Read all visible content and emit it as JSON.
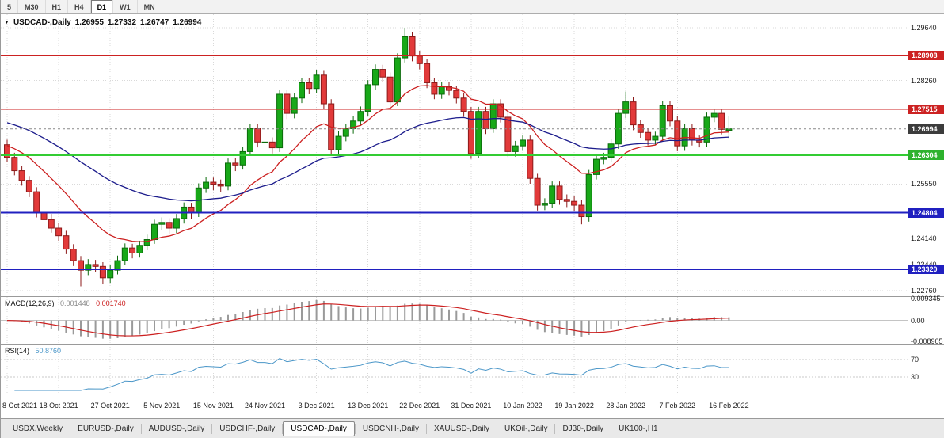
{
  "toolbar": {
    "timeframes": [
      {
        "label": "5",
        "active": false
      },
      {
        "label": "M30",
        "active": false
      },
      {
        "label": "H1",
        "active": false
      },
      {
        "label": "H4",
        "active": false
      },
      {
        "label": "D1",
        "active": true
      },
      {
        "label": "W1",
        "active": false
      },
      {
        "label": "MN",
        "active": false
      }
    ]
  },
  "chart_header": {
    "dropdown_icon": "▼",
    "symbol": "USDCAD-,Daily",
    "open": "1.26955",
    "high": "1.27332",
    "low": "1.26747",
    "close": "1.26994"
  },
  "price_axis": {
    "labels": [
      {
        "text": "1.29640",
        "price": 1.2964
      },
      {
        "text": "1.28260",
        "price": 1.2826
      },
      {
        "text": "1.25550",
        "price": 1.2555
      },
      {
        "text": "1.24140",
        "price": 1.2414
      },
      {
        "text": "1.23440",
        "price": 1.2344
      },
      {
        "text": "1.22760",
        "price": 1.2276
      }
    ],
    "badges": [
      {
        "text": "1.28908",
        "price": 1.28908,
        "bg": "#cc2222"
      },
      {
        "text": "1.27515",
        "price": 1.27515,
        "bg": "#cc2222"
      },
      {
        "text": "1.26994",
        "price": 1.26994,
        "bg": "#3c3c3c"
      },
      {
        "text": "1.26304",
        "price": 1.26304,
        "bg": "#2db22d"
      },
      {
        "text": "1.24804",
        "price": 1.24804,
        "bg": "#2020c0"
      },
      {
        "text": "1.23320",
        "price": 1.2332,
        "bg": "#2020c0"
      }
    ]
  },
  "chart_data": {
    "type": "candlestick",
    "title": "USDCAD-,Daily",
    "symbol": "USDCAD",
    "timeframe": "Daily",
    "price_range": [
      1.2262,
      1.2999
    ],
    "x_labels": [
      "8 Oct 2021",
      "18 Oct 2021",
      "27 Oct 2021",
      "5 Nov 2021",
      "15 Nov 2021",
      "24 Nov 2021",
      "3 Dec 2021",
      "13 Dec 2021",
      "22 Dec 2021",
      "31 Dec 2021",
      "10 Jan 2022",
      "19 Jan 2022",
      "28 Jan 2022",
      "7 Feb 2022",
      "16 Feb 2022"
    ],
    "x_label_every": 7,
    "current_price": 1.26994,
    "candle_colors": {
      "up": "#18a818",
      "up_border": "#0b6b0b",
      "down": "#e23a3a",
      "down_border": "#8c1a1a"
    },
    "h_lines": [
      {
        "price": 1.28908,
        "color": "#cc2222",
        "width": 1.6,
        "role": "resistance"
      },
      {
        "price": 1.27515,
        "color": "#cc2222",
        "width": 1.6,
        "role": "resistance"
      },
      {
        "price": 1.26304,
        "color": "#33cc33",
        "width": 2,
        "role": "support"
      },
      {
        "price": 1.24804,
        "color": "#2020c0",
        "width": 2,
        "role": "support"
      },
      {
        "price": 1.2332,
        "color": "#2020c0",
        "width": 2,
        "role": "support"
      }
    ],
    "moving_averages": [
      {
        "name": "fast-ma",
        "type": "ema",
        "period": 15,
        "seed": 1.266,
        "color": "#cc2020"
      },
      {
        "name": "slow-ma",
        "type": "ema",
        "period": 42,
        "seed": 1.272,
        "color": "#1c1c8c"
      }
    ],
    "candles": [
      [
        1.2658,
        1.2671,
        1.2612,
        1.2625
      ],
      [
        1.2625,
        1.2637,
        1.2578,
        1.259
      ],
      [
        1.259,
        1.2603,
        1.2551,
        1.2565
      ],
      [
        1.2565,
        1.2576,
        1.2521,
        1.2535
      ],
      [
        1.2535,
        1.2547,
        1.2468,
        1.248
      ],
      [
        1.248,
        1.2498,
        1.245,
        1.2462
      ],
      [
        1.2462,
        1.2477,
        1.2428,
        1.244
      ],
      [
        1.244,
        1.2453,
        1.2407,
        1.242
      ],
      [
        1.242,
        1.2433,
        1.2372,
        1.2385
      ],
      [
        1.2385,
        1.2398,
        1.2341,
        1.2355
      ],
      [
        1.2355,
        1.2367,
        1.2288,
        1.233
      ],
      [
        1.233,
        1.2359,
        1.2317,
        1.2345
      ],
      [
        1.2345,
        1.2357,
        1.2325,
        1.234
      ],
      [
        1.234,
        1.2351,
        1.2293,
        1.231
      ],
      [
        1.231,
        1.2343,
        1.2297,
        1.233
      ],
      [
        1.233,
        1.2368,
        1.2319,
        1.2355
      ],
      [
        1.2355,
        1.24,
        1.2343,
        1.2388
      ],
      [
        1.2388,
        1.2399,
        1.2361,
        1.2375
      ],
      [
        1.2375,
        1.2407,
        1.2363,
        1.2395
      ],
      [
        1.2395,
        1.2423,
        1.2382,
        1.241
      ],
      [
        1.241,
        1.2462,
        1.2399,
        1.245
      ],
      [
        1.245,
        1.2468,
        1.2435,
        1.2455
      ],
      [
        1.2455,
        1.2466,
        1.2425,
        1.244
      ],
      [
        1.244,
        1.2477,
        1.2427,
        1.2465
      ],
      [
        1.2465,
        1.2507,
        1.2452,
        1.2495
      ],
      [
        1.2495,
        1.2506,
        1.2465,
        1.248
      ],
      [
        1.248,
        1.2557,
        1.2469,
        1.2545
      ],
      [
        1.2545,
        1.2573,
        1.2532,
        1.256
      ],
      [
        1.256,
        1.2572,
        1.2539,
        1.2555
      ],
      [
        1.2555,
        1.2567,
        1.2535,
        1.255
      ],
      [
        1.255,
        1.2622,
        1.2539,
        1.261
      ],
      [
        1.261,
        1.2623,
        1.2589,
        1.2605
      ],
      [
        1.2605,
        1.2652,
        1.2593,
        1.264
      ],
      [
        1.264,
        1.2712,
        1.2629,
        1.27
      ],
      [
        1.27,
        1.2713,
        1.2651,
        1.2665
      ],
      [
        1.2665,
        1.268,
        1.2648,
        1.2665
      ],
      [
        1.2665,
        1.2677,
        1.2635,
        1.265
      ],
      [
        1.265,
        1.2802,
        1.2639,
        1.279
      ],
      [
        1.279,
        1.2802,
        1.2725,
        1.274
      ],
      [
        1.274,
        1.2793,
        1.2727,
        1.278
      ],
      [
        1.278,
        1.2833,
        1.2767,
        1.282
      ],
      [
        1.282,
        1.2832,
        1.279,
        1.2805
      ],
      [
        1.2805,
        1.2853,
        1.2792,
        1.284
      ],
      [
        1.284,
        1.2851,
        1.2751,
        1.2765
      ],
      [
        1.2765,
        1.2777,
        1.2631,
        1.2645
      ],
      [
        1.2645,
        1.2693,
        1.2632,
        1.268
      ],
      [
        1.268,
        1.2713,
        1.2667,
        1.27
      ],
      [
        1.27,
        1.2733,
        1.2687,
        1.272
      ],
      [
        1.272,
        1.2758,
        1.2707,
        1.2745
      ],
      [
        1.2745,
        1.2827,
        1.2733,
        1.2815
      ],
      [
        1.2815,
        1.2868,
        1.2802,
        1.2855
      ],
      [
        1.2855,
        1.2867,
        1.2821,
        1.2835
      ],
      [
        1.2835,
        1.2847,
        1.2757,
        1.277
      ],
      [
        1.277,
        1.2897,
        1.2759,
        1.2885
      ],
      [
        1.2885,
        1.2964,
        1.2873,
        1.294
      ],
      [
        1.294,
        1.2952,
        1.2876,
        1.289
      ],
      [
        1.289,
        1.2902,
        1.2855,
        1.287
      ],
      [
        1.287,
        1.2881,
        1.2806,
        1.282
      ],
      [
        1.282,
        1.2832,
        1.2777,
        1.279
      ],
      [
        1.279,
        1.2822,
        1.2778,
        1.281
      ],
      [
        1.281,
        1.2823,
        1.2787,
        1.28
      ],
      [
        1.28,
        1.2812,
        1.2766,
        1.278
      ],
      [
        1.278,
        1.2792,
        1.2731,
        1.2745
      ],
      [
        1.2745,
        1.2757,
        1.2621,
        1.2635
      ],
      [
        1.2635,
        1.2757,
        1.2623,
        1.2745
      ],
      [
        1.2745,
        1.2757,
        1.2686,
        1.27
      ],
      [
        1.27,
        1.2777,
        1.2689,
        1.2765
      ],
      [
        1.2765,
        1.2777,
        1.2716,
        1.273
      ],
      [
        1.273,
        1.2742,
        1.2626,
        1.264
      ],
      [
        1.264,
        1.2668,
        1.2627,
        1.2655
      ],
      [
        1.2655,
        1.2682,
        1.2642,
        1.267
      ],
      [
        1.267,
        1.2682,
        1.2556,
        1.257
      ],
      [
        1.257,
        1.2582,
        1.2486,
        1.25
      ],
      [
        1.25,
        1.2518,
        1.2487,
        1.2505
      ],
      [
        1.2505,
        1.2562,
        1.2492,
        1.255
      ],
      [
        1.255,
        1.2562,
        1.2501,
        1.2515
      ],
      [
        1.2515,
        1.2528,
        1.2495,
        1.251
      ],
      [
        1.251,
        1.2523,
        1.2485,
        1.25
      ],
      [
        1.25,
        1.2513,
        1.245,
        1.247
      ],
      [
        1.247,
        1.2592,
        1.2457,
        1.258
      ],
      [
        1.258,
        1.2632,
        1.2567,
        1.262
      ],
      [
        1.262,
        1.2637,
        1.2607,
        1.2625
      ],
      [
        1.2625,
        1.2672,
        1.2612,
        1.266
      ],
      [
        1.266,
        1.2752,
        1.2647,
        1.274
      ],
      [
        1.274,
        1.2797,
        1.2727,
        1.277
      ],
      [
        1.277,
        1.2782,
        1.2696,
        1.271
      ],
      [
        1.271,
        1.2722,
        1.2676,
        1.269
      ],
      [
        1.269,
        1.2702,
        1.2656,
        1.267
      ],
      [
        1.267,
        1.2692,
        1.2657,
        1.268
      ],
      [
        1.268,
        1.2772,
        1.2667,
        1.276
      ],
      [
        1.276,
        1.2772,
        1.2706,
        1.272
      ],
      [
        1.272,
        1.2732,
        1.2641,
        1.2655
      ],
      [
        1.2655,
        1.2712,
        1.2642,
        1.27
      ],
      [
        1.27,
        1.2712,
        1.2656,
        1.267
      ],
      [
        1.267,
        1.2682,
        1.2651,
        1.2665
      ],
      [
        1.2665,
        1.2742,
        1.2652,
        1.273
      ],
      [
        1.273,
        1.2752,
        1.2717,
        1.274
      ],
      [
        1.274,
        1.2752,
        1.2685,
        1.2698
      ],
      [
        1.26955,
        1.27332,
        1.26747,
        1.26994
      ]
    ]
  },
  "macd_panel": {
    "label": "MACD(12,26,9)",
    "value_main": "0.001448",
    "value_signal": "0.001740",
    "params": {
      "fast": 12,
      "slow": 26,
      "signal": 9
    },
    "range": [
      -0.008905,
      0.009345
    ],
    "axis_labels": [
      {
        "text": "0.009345",
        "value": 0.009345
      },
      {
        "text": "0.00",
        "value": 0
      },
      {
        "text": "-0.008905",
        "value": -0.008905
      }
    ],
    "histogram_color": "#9a9a9a",
    "signal_color": "#cc2020"
  },
  "rsi_panel": {
    "label": "RSI(14)",
    "value": "50.8760",
    "period": 14,
    "line_color": "#4a96c8",
    "levels": [
      {
        "text": "70",
        "value": 70
      },
      {
        "text": "30",
        "value": 30
      }
    ]
  },
  "tabs": [
    {
      "label": "USDX,Weekly",
      "active": false
    },
    {
      "label": "EURUSD-,Daily",
      "active": false
    },
    {
      "label": "AUDUSD-,Daily",
      "active": false
    },
    {
      "label": "USDCHF-,Daily",
      "active": false
    },
    {
      "label": "USDCAD-,Daily",
      "active": true
    },
    {
      "label": "USDCNH-,Daily",
      "active": false
    },
    {
      "label": "XAUUSD-,Daily",
      "active": false
    },
    {
      "label": "UKOil-,Daily",
      "active": false
    },
    {
      "label": "DJ30-,Daily",
      "active": false
    },
    {
      "label": "UK100-,H1",
      "active": false
    }
  ]
}
